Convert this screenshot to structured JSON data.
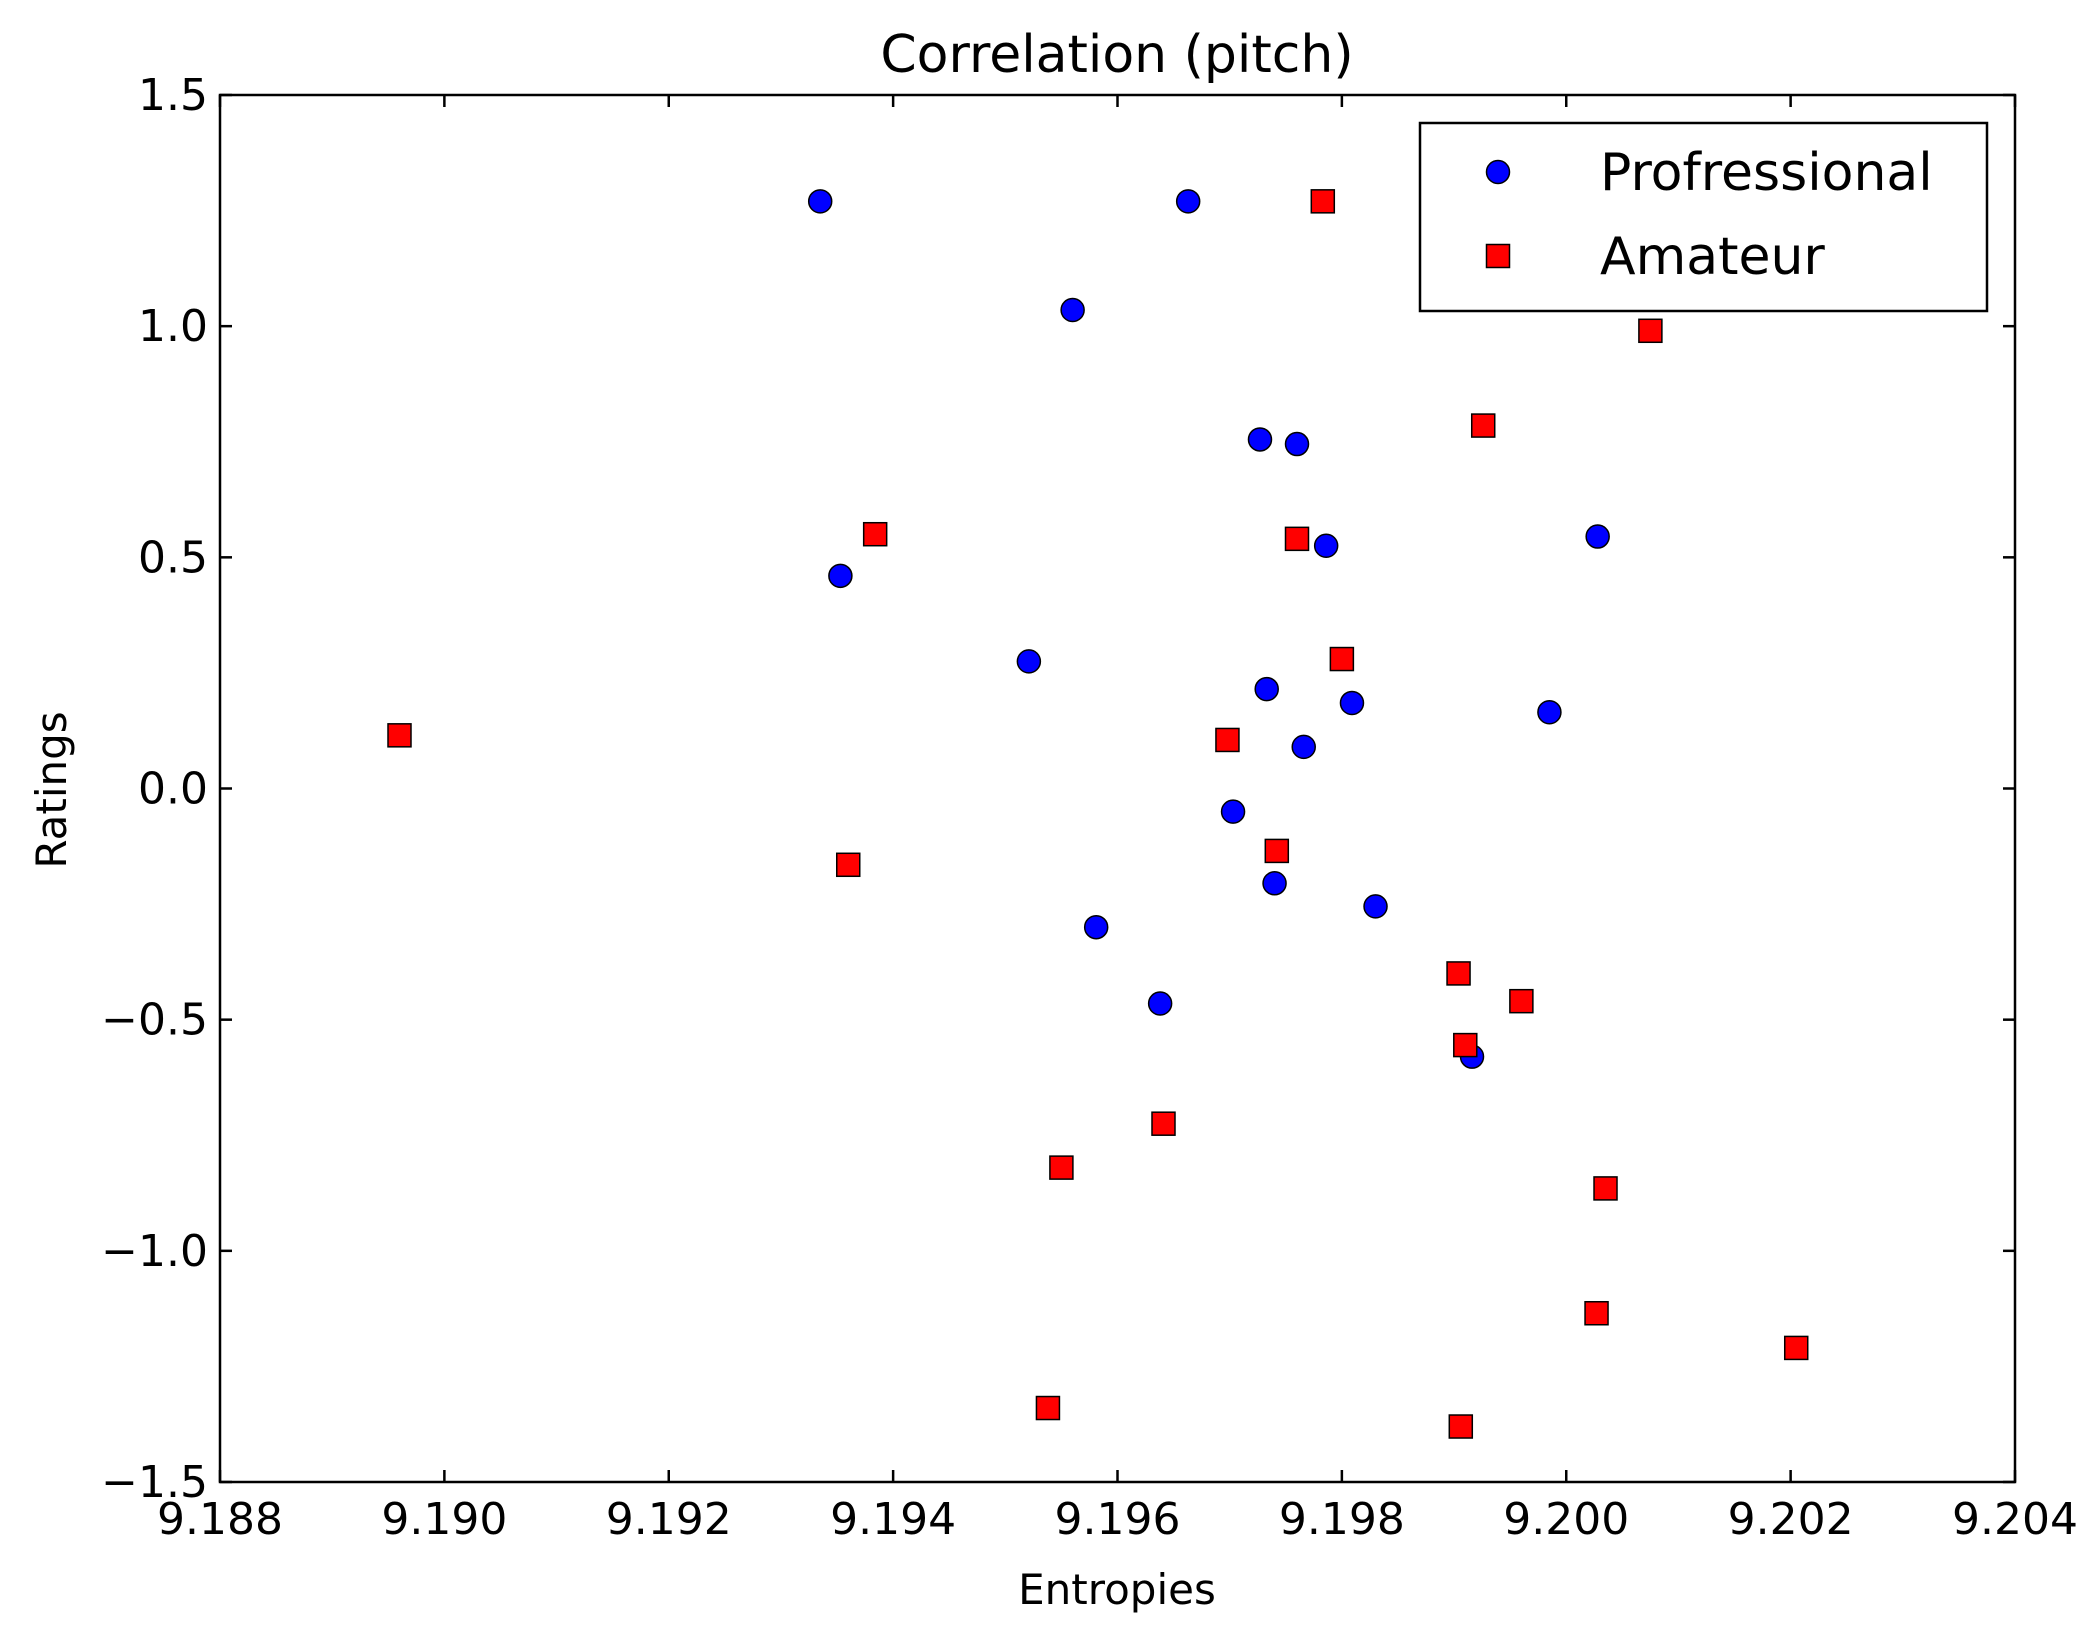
{
  "chart_data": {
    "type": "scatter",
    "title": "Correlation (pitch)",
    "xlabel": "Entropies",
    "ylabel": "Ratings",
    "xlim": [
      9.188,
      9.204
    ],
    "ylim": [
      -1.5,
      1.5
    ],
    "xticks": [
      9.188,
      9.19,
      9.192,
      9.194,
      9.196,
      9.198,
      9.2,
      9.202,
      9.204
    ],
    "xtick_labels": [
      "9.188",
      "9.190",
      "9.192",
      "9.194",
      "9.196",
      "9.198",
      "9.200",
      "9.202",
      "9.204"
    ],
    "yticks": [
      -1.5,
      -1.0,
      -0.5,
      0.0,
      0.5,
      1.0,
      1.5
    ],
    "ytick_labels": [
      "−1.5",
      "−1.0",
      "−0.5",
      "0.0",
      "0.5",
      "1.0",
      "1.5"
    ],
    "grid": false,
    "legend_position": "top-right",
    "series": [
      {
        "name": "Profressional",
        "marker": "circle",
        "color": "#0000ff",
        "points": [
          [
            9.19335,
            1.27
          ],
          [
            9.19663,
            1.27
          ],
          [
            9.1956,
            1.035
          ],
          [
            9.19727,
            0.755
          ],
          [
            9.1976,
            0.745
          ],
          [
            9.19353,
            0.46
          ],
          [
            9.19786,
            0.525
          ],
          [
            9.20028,
            0.545
          ],
          [
            9.19521,
            0.275
          ],
          [
            9.19733,
            0.215
          ],
          [
            9.19809,
            0.185
          ],
          [
            9.19985,
            0.165
          ],
          [
            9.19766,
            0.09
          ],
          [
            9.19703,
            -0.05
          ],
          [
            9.1974,
            -0.205
          ],
          [
            9.1983,
            -0.255
          ],
          [
            9.19581,
            -0.3
          ],
          [
            9.19638,
            -0.465
          ],
          [
            9.19916,
            -0.58
          ]
        ]
      },
      {
        "name": "Amateur",
        "marker": "square",
        "color": "#ff0000",
        "points": [
          [
            9.19783,
            1.27
          ],
          [
            9.20075,
            0.99
          ],
          [
            9.19926,
            0.785
          ],
          [
            9.19384,
            0.55
          ],
          [
            9.1976,
            0.54
          ],
          [
            9.198,
            0.28
          ],
          [
            9.1896,
            0.115
          ],
          [
            9.19698,
            0.105
          ],
          [
            9.1936,
            -0.165
          ],
          [
            9.19742,
            -0.135
          ],
          [
            9.19904,
            -0.4
          ],
          [
            9.1996,
            -0.46
          ],
          [
            9.1991,
            -0.555
          ],
          [
            9.19641,
            -0.725
          ],
          [
            9.1955,
            -0.82
          ],
          [
            9.20035,
            -0.865
          ],
          [
            9.20027,
            -1.135
          ],
          [
            9.20205,
            -1.21
          ],
          [
            9.19538,
            -1.34
          ],
          [
            9.19906,
            -1.38
          ]
        ]
      }
    ]
  }
}
